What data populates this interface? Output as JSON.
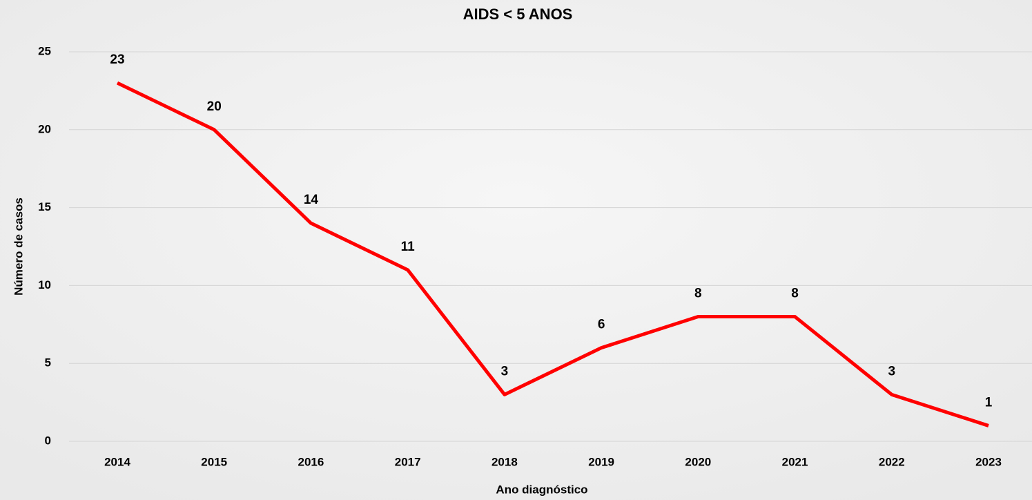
{
  "chart_data": {
    "type": "line",
    "title": "AIDS < 5 ANOS",
    "x_label": "Ano diagnóstico",
    "y_label": "Número de casos",
    "categories": [
      "2014",
      "2015",
      "2016",
      "2017",
      "2018",
      "2019",
      "2020",
      "2021",
      "2022",
      "2023"
    ],
    "values": [
      23,
      20,
      14,
      11,
      3,
      6,
      8,
      8,
      3,
      1
    ],
    "color": "#ff0000",
    "ylim": [
      0,
      25
    ],
    "yticks": [
      0,
      5,
      10,
      15,
      20,
      25
    ],
    "grid": true
  }
}
